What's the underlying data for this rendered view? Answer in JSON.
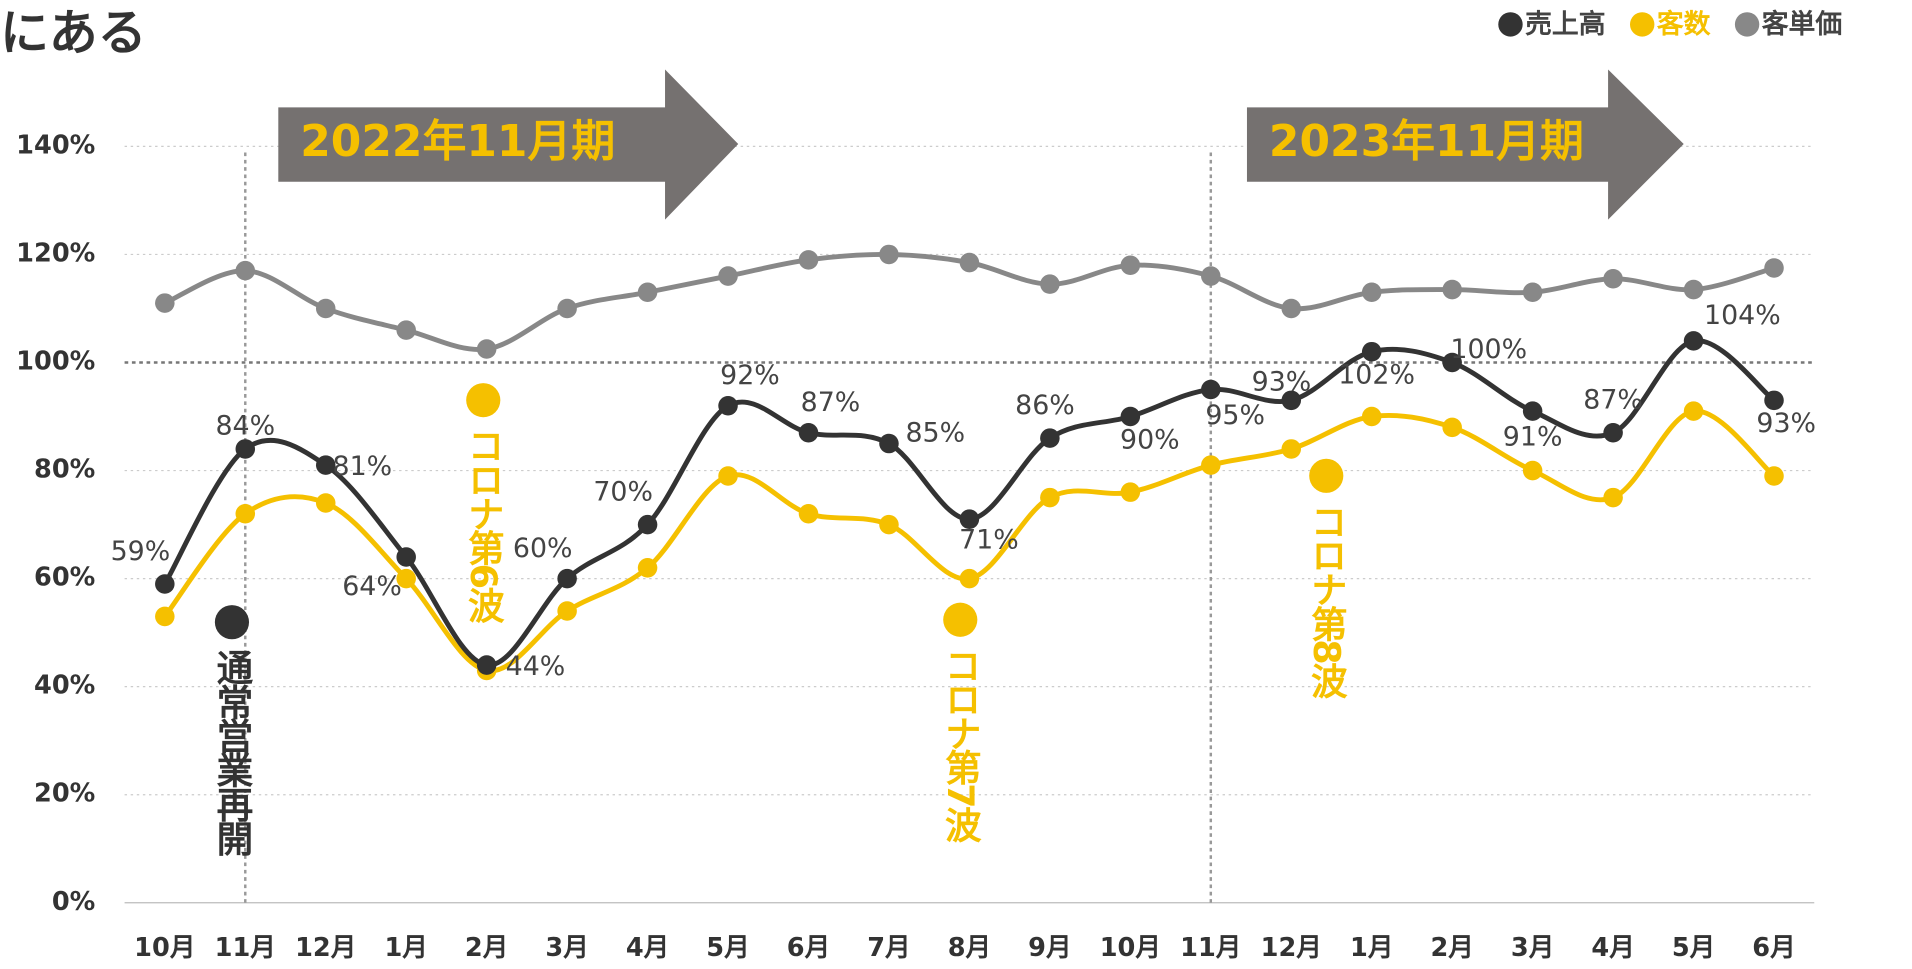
{
  "chart_data": {
    "type": "line",
    "title": "にある",
    "categories": [
      "10月",
      "11月",
      "12月",
      "1月",
      "2月",
      "3月",
      "4月",
      "5月",
      "6月",
      "7月",
      "8月",
      "9月",
      "10月",
      "11月",
      "12月",
      "1月",
      "2月",
      "3月",
      "4月",
      "5月",
      "6月"
    ],
    "series": [
      {
        "name": "売上高",
        "color": "#333333",
        "values": [
          59,
          84,
          81,
          64,
          44,
          60,
          70,
          92,
          87,
          85,
          71,
          86,
          90,
          95,
          93,
          102,
          100,
          91,
          87,
          104,
          93
        ],
        "value_labels": [
          "59%",
          "84%",
          "81%",
          "64%",
          "44%",
          "60%",
          "70%",
          "92%",
          "87%",
          "85%",
          "71%",
          "86%",
          "90%",
          "95%",
          "93%",
          "102%",
          "100%",
          "91%",
          "87%",
          "104%",
          "93%"
        ]
      },
      {
        "name": "客数",
        "color": "#f5c000",
        "values": [
          53,
          72,
          74,
          60,
          43,
          54,
          62,
          79,
          72,
          70,
          60,
          75,
          76,
          81,
          84,
          90,
          88,
          80,
          75,
          91,
          79
        ]
      },
      {
        "name": "客単価",
        "color": "#888888",
        "values": [
          111,
          117,
          110,
          106,
          102.5,
          110,
          113,
          116,
          119,
          120,
          118.5,
          114.5,
          118,
          116,
          110,
          113,
          113.5,
          113,
          115.5,
          113.5,
          117.5
        ]
      }
    ],
    "ylim": [
      0,
      140
    ],
    "yticks": [
      {
        "value": 0,
        "label": "0%"
      },
      {
        "value": 20,
        "label": "20%"
      },
      {
        "value": 40,
        "label": "40%"
      },
      {
        "value": 60,
        "label": "60%"
      },
      {
        "value": 80,
        "label": "80%"
      },
      {
        "value": 100,
        "label": "100%"
      },
      {
        "value": 120,
        "label": "120%"
      },
      {
        "value": 140,
        "label": "140%"
      }
    ],
    "grid": true,
    "reference_line": 100,
    "legend": "top-right",
    "periods": [
      "2022年11月期",
      "2023年11月期"
    ],
    "annotations": [
      "通常営業再開",
      "コロナ第6波",
      "コロナ第7波",
      "コロナ第8波"
    ]
  }
}
